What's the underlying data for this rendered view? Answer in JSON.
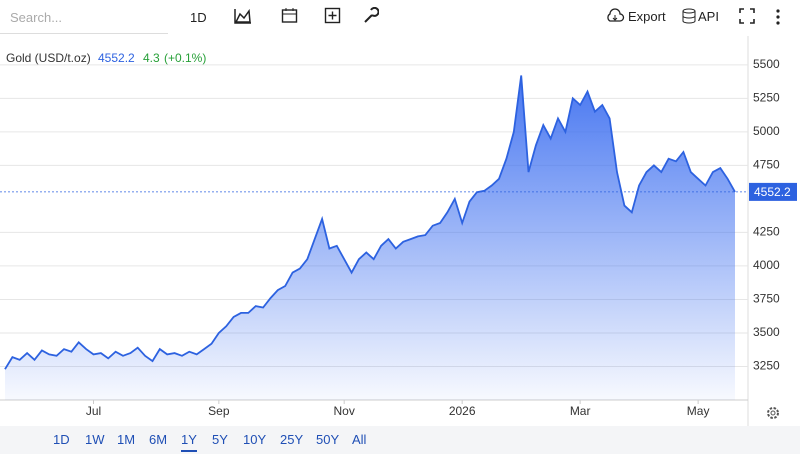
{
  "toolbar": {
    "search_placeholder": "Search...",
    "interval": "1D",
    "export": "Export",
    "api": "API"
  },
  "chart_data": {
    "type": "area",
    "title": "Gold (USD/t.oz)",
    "change": "4.3",
    "change_pct": "(+0.1%)",
    "color": "#2d62e0",
    "values": [
      3230,
      3320,
      3300,
      3350,
      3300,
      3370,
      3340,
      3330,
      3380,
      3360,
      3430,
      3380,
      3340,
      3350,
      3310,
      3360,
      3330,
      3350,
      3390,
      3330,
      3290,
      3380,
      3340,
      3350,
      3330,
      3360,
      3340,
      3380,
      3420,
      3500,
      3550,
      3620,
      3650,
      3650,
      3700,
      3690,
      3760,
      3820,
      3850,
      3950,
      3980,
      4050,
      4200,
      4350,
      4130,
      4150,
      4050,
      3950,
      4050,
      4100,
      4050,
      4150,
      4200,
      4130,
      4180,
      4200,
      4220,
      4230,
      4300,
      4320,
      4400,
      4500,
      4320,
      4480,
      4550,
      4560,
      4600,
      4650,
      4800,
      5000,
      5420,
      4700,
      4900,
      5050,
      4950,
      5100,
      5000,
      5250,
      5200,
      5300,
      5150,
      5200,
      5100,
      4700,
      4450,
      4400,
      4600,
      4700,
      4750,
      4700,
      4800,
      4780,
      4850,
      4700,
      4650,
      4600,
      4700,
      4730,
      4650,
      4552.2
    ],
    "xlim": [
      0,
      99
    ],
    "xticks": [
      {
        "value": 12,
        "label": "Jul"
      },
      {
        "value": 29,
        "label": "Sep"
      },
      {
        "value": 46,
        "label": "Nov"
      },
      {
        "value": 62,
        "label": "2026"
      },
      {
        "value": 78,
        "label": "Mar"
      },
      {
        "value": 94,
        "label": "May"
      }
    ],
    "ylim": [
      3000,
      5700
    ],
    "yticks": [
      3250,
      3500,
      3750,
      4000,
      4250,
      4750,
      5000,
      5250,
      5500
    ],
    "grid": true
  },
  "ranges": {
    "options": [
      "1D",
      "1W",
      "1M",
      "6M",
      "1Y",
      "5Y",
      "10Y",
      "25Y",
      "50Y",
      "All"
    ],
    "selected": 4
  }
}
